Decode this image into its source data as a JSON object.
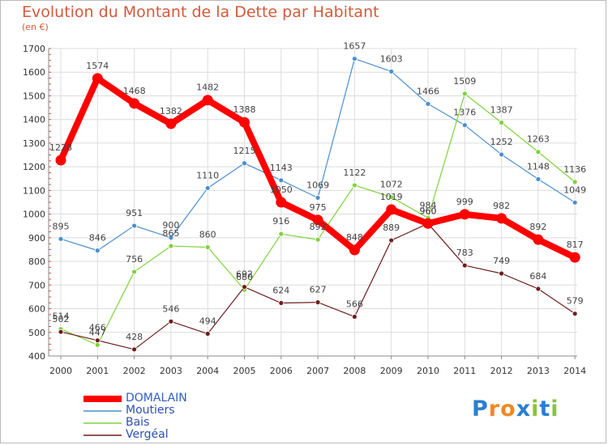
{
  "chart_data": {
    "type": "line",
    "title": "Evolution du Montant de la Dette par Habitant",
    "subtitle": "(en €)",
    "x": [
      "2000",
      "2001",
      "2002",
      "2003",
      "2004",
      "2005",
      "2006",
      "2007",
      "2008",
      "2009",
      "2010",
      "2011",
      "2012",
      "2013",
      "2014"
    ],
    "ylim": [
      400,
      1700
    ],
    "yticks": [
      400,
      500,
      600,
      700,
      800,
      900,
      1000,
      1100,
      1200,
      1300,
      1400,
      1500,
      1600,
      1700
    ],
    "grid": true,
    "legend_position": "bottom-left",
    "series": [
      {
        "name": "DOMALAIN",
        "color": "#ff0000",
        "values": [
          1228,
          1574,
          1468,
          1382,
          1482,
          1388,
          1050,
          975,
          848,
          1019,
          960,
          999,
          982,
          892,
          817
        ],
        "labels": [
          "1228",
          "1574",
          "1468",
          "1382",
          "1482",
          "1388",
          "1050",
          "975",
          "848",
          "1019",
          "960",
          "999",
          "982",
          "892",
          "817"
        ]
      },
      {
        "name": "Moutiers",
        "color": "#4a8fd0",
        "values": [
          895,
          846,
          951,
          900,
          1110,
          1215,
          1143,
          1069,
          1657,
          1603,
          1466,
          1376,
          1252,
          1148,
          1049
        ],
        "labels": [
          "895",
          "846",
          "951",
          "900",
          "1110",
          "1215",
          "1143",
          "1069",
          "1657",
          "1603",
          "1466",
          "1376",
          "1252",
          "1148",
          "1049"
        ]
      },
      {
        "name": "Bais",
        "color": "#7ed23a",
        "values": [
          514,
          447,
          756,
          865,
          860,
          680,
          916,
          892,
          1122,
          1072,
          984,
          1509,
          1387,
          1263,
          1136
        ],
        "labels": [
          "514",
          "447",
          "756",
          "865",
          "860",
          "680",
          "916",
          "892",
          "1122",
          "1072",
          "984",
          "1509",
          "1387",
          "1263",
          "1136"
        ]
      },
      {
        "name": "Vergéal",
        "color": "#6e1e1e",
        "values": [
          502,
          466,
          428,
          546,
          494,
          692,
          624,
          627,
          566,
          889,
          960,
          783,
          749,
          684,
          579
        ],
        "labels": [
          "502",
          "466",
          "428",
          "546",
          "494",
          "692",
          "624",
          "627",
          "566",
          "889",
          "960",
          "783",
          "749",
          "684",
          "579"
        ]
      }
    ]
  },
  "logo": {
    "text": "Proxiti",
    "letters": [
      "P",
      "r",
      "o",
      "x",
      "i",
      "t",
      "i"
    ]
  }
}
